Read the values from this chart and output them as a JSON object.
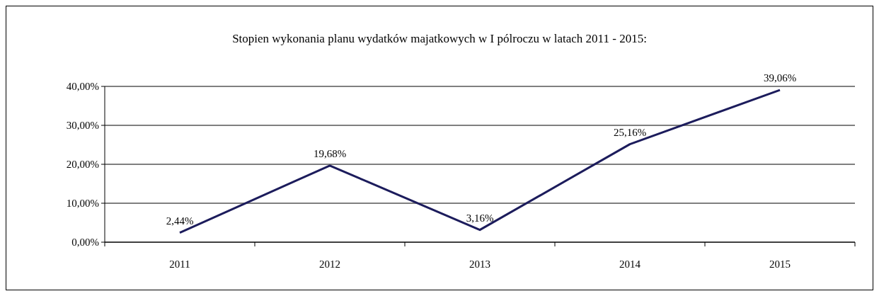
{
  "chart_data": {
    "type": "line",
    "title": "Stopien wykonania planu wydatków majatkowych w I pólroczu w latach 2011 - 2015:",
    "categories": [
      "2011",
      "2012",
      "2013",
      "2014",
      "2015"
    ],
    "series": [
      {
        "color": "#1c1c5c",
        "values": [
          2.44,
          19.68,
          3.16,
          25.16,
          39.06
        ],
        "value_labels": [
          "2,44%",
          "19,68%",
          "3,16%",
          "25,16%",
          "39,06%"
        ]
      }
    ],
    "ylim": [
      0,
      40
    ],
    "yticks": [
      {
        "value": 0,
        "label": "0,00%"
      },
      {
        "value": 10,
        "label": "10,00%"
      },
      {
        "value": 20,
        "label": "20,00%"
      },
      {
        "value": 30,
        "label": "30,00%"
      },
      {
        "value": 40,
        "label": "40,00%"
      }
    ],
    "grid": "y",
    "marker": "none",
    "line_style": "solid"
  }
}
